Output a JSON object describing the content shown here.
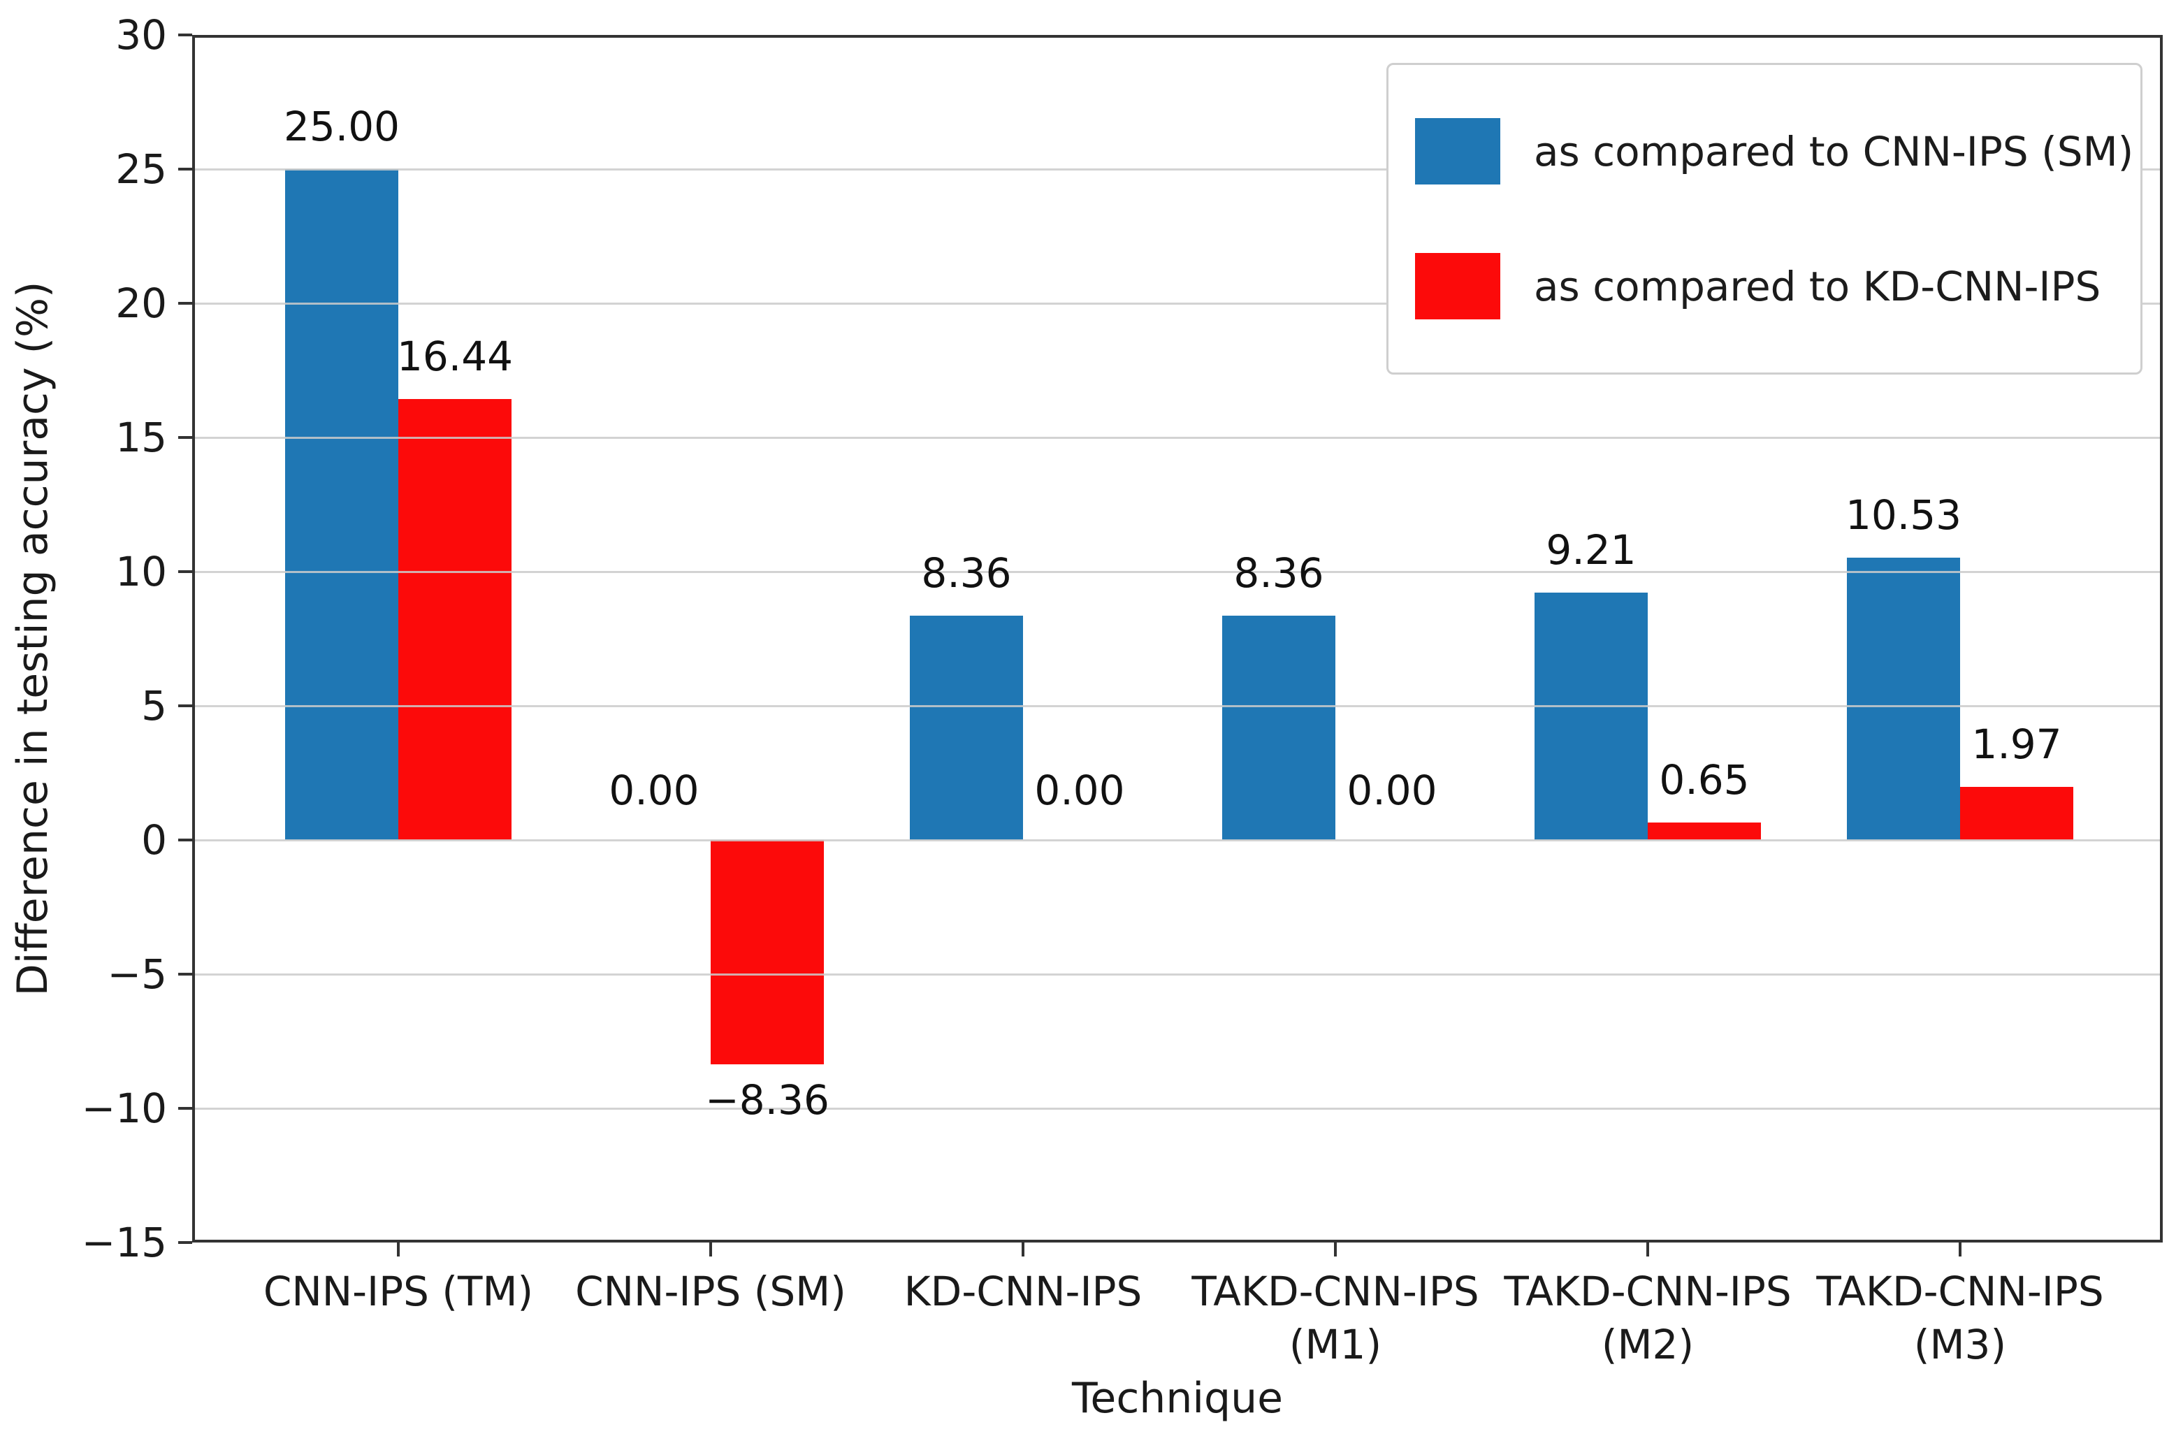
{
  "chart_data": {
    "type": "bar",
    "title": "",
    "xlabel": "Technique",
    "ylabel": "Difference in testing accuracy (%)",
    "categories": [
      "CNN-IPS (TM)",
      "CNN-IPS (SM)",
      "KD-CNN-IPS",
      "TAKD-CNN-IPS\n(M1)",
      "TAKD-CNN-IPS\n(M2)",
      "TAKD-CNN-IPS\n(M3)"
    ],
    "series": [
      {
        "name": "as compared to CNN-IPS (SM)",
        "color": "#1f77b4",
        "values": [
          25.0,
          0.0,
          8.36,
          8.36,
          9.21,
          10.53
        ],
        "value_labels": [
          "25.00",
          "0.00",
          "8.36",
          "8.36",
          "9.21",
          "10.53"
        ]
      },
      {
        "name": "as compared to KD-CNN-IPS",
        "color": "#fc0a0a",
        "values": [
          16.44,
          -8.36,
          0.0,
          0.0,
          0.65,
          1.97
        ],
        "value_labels": [
          "16.44",
          "−8.36",
          "0.00",
          "0.00",
          "0.65",
          "1.97"
        ]
      }
    ],
    "ylim": [
      -15,
      30
    ],
    "yticks": [
      30,
      25,
      20,
      15,
      10,
      5,
      0,
      -5,
      -10,
      -15
    ],
    "ytick_labels": [
      "30",
      "25",
      "20",
      "15",
      "10",
      "5",
      "0",
      "−5",
      "−10",
      "−15"
    ],
    "grid": "horizontal",
    "grid_over_bars": true,
    "legend_position": "upper-right",
    "colors": {
      "grid": "#cbcbcb",
      "spine": "#333333",
      "text": "#1a1a1a",
      "background": "#ffffff"
    }
  }
}
